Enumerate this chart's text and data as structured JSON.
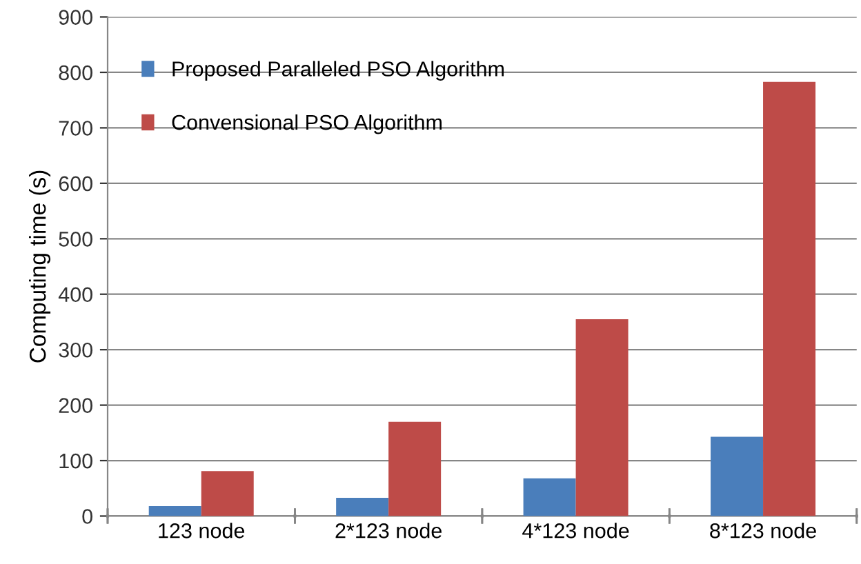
{
  "chart_data": {
    "type": "bar",
    "ylabel": "Computing time (s)",
    "categories": [
      "123 node",
      "2*123 node",
      "4*123 node",
      "8*123 node"
    ],
    "series": [
      {
        "name": "Proposed Paralleled PSO Algorithm",
        "color": "#4a7ebb",
        "values": [
          18,
          33,
          68,
          143
        ]
      },
      {
        "name": "Convensional PSO Algorithm",
        "color": "#be4b48",
        "values": [
          81,
          170,
          355,
          783
        ]
      }
    ],
    "ylim": [
      0,
      900
    ],
    "yticks": [
      0,
      100,
      200,
      300,
      400,
      500,
      600,
      700,
      800,
      900
    ],
    "grid": "y",
    "legend": "top left"
  }
}
